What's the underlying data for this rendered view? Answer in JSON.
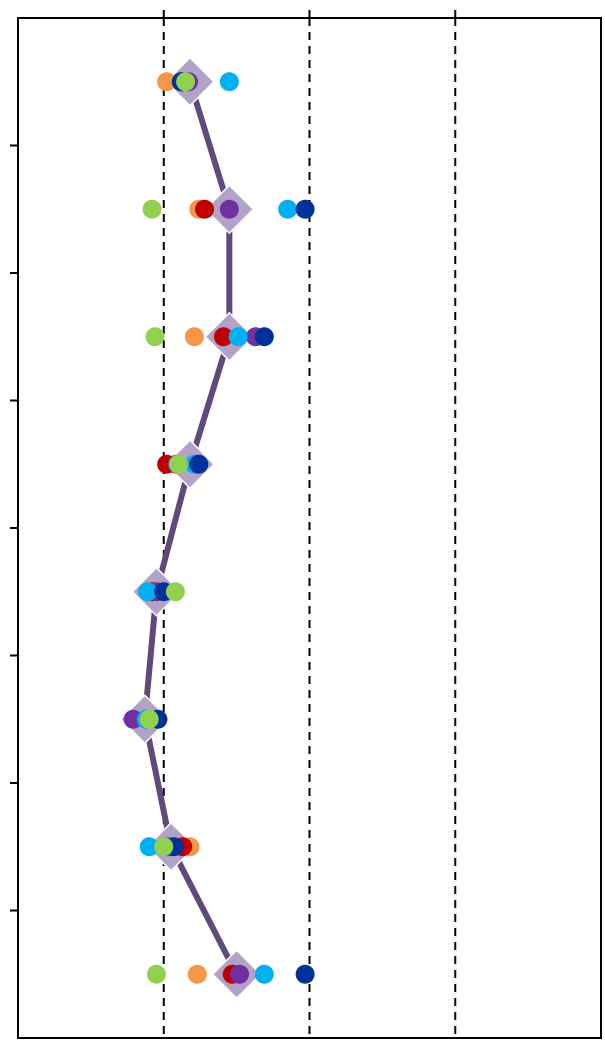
{
  "chart_data": {
    "type": "scatter",
    "orientation": "horizontal-rows",
    "title": "",
    "xlabel": "",
    "ylabel": "",
    "xlim": [
      0,
      4
    ],
    "x_gridlines": [
      1,
      2,
      3
    ],
    "grid_style": "dashed-vertical",
    "rows": 8,
    "tick_labels_visible": false,
    "colors": {
      "orange": "#F79646",
      "red": "#C00000",
      "purple": "#7030A0",
      "cyan": "#00B0F0",
      "navy": "#003399",
      "green": "#92D050",
      "mean_marker": "#B3A2C7",
      "mean_line": "#604A7B",
      "axis": "#000000",
      "grid": "#000000"
    },
    "mean": {
      "marker": "diamond",
      "x": [
        1.18,
        1.45,
        1.45,
        1.18,
        0.95,
        0.87,
        1.05,
        1.5
      ]
    },
    "series": [
      {
        "color_key": "orange",
        "x": [
          1.02,
          1.24,
          1.21,
          1.08,
          0.93,
          0.89,
          1.18,
          1.23
        ]
      },
      {
        "color_key": "red",
        "x": [
          1.13,
          1.28,
          1.41,
          1.02,
          0.92,
          0.88,
          1.13,
          1.47
        ]
      },
      {
        "color_key": "purple",
        "x": [
          1.17,
          1.45,
          1.63,
          1.09,
          0.95,
          0.79,
          1.03,
          1.52
        ]
      },
      {
        "color_key": "cyan",
        "x": [
          1.45,
          1.85,
          1.51,
          1.21,
          0.89,
          0.88,
          0.9,
          1.69
        ]
      },
      {
        "color_key": "navy",
        "x": [
          1.12,
          1.97,
          1.69,
          1.24,
          1.0,
          0.96,
          1.07,
          1.97
        ]
      },
      {
        "color_key": "green",
        "x": [
          1.15,
          0.92,
          0.94,
          1.1,
          1.08,
          0.9,
          1.0,
          0.95
        ]
      }
    ]
  }
}
